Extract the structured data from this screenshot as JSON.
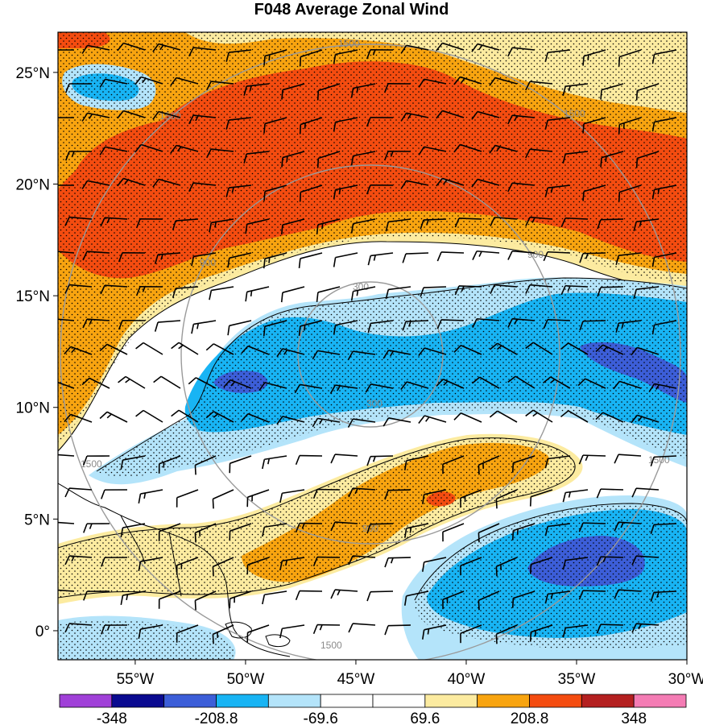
{
  "title": "F048 Average Zonal Wind",
  "map": {
    "lat_labels": [
      "25°N",
      "20°N",
      "15°N",
      "10°N",
      "5°N",
      "0°"
    ],
    "lat_values": [
      25,
      20,
      15,
      10,
      5,
      0
    ],
    "lon_labels": [
      "55°W",
      "50°W",
      "45°W",
      "40°W",
      "35°W",
      "30°W"
    ],
    "lon_values": [
      -55,
      -50,
      -45,
      -40,
      -35,
      -30
    ],
    "lon_range": [
      -58.5,
      -30
    ],
    "lat_range": [
      -1.3,
      26.8
    ],
    "range_ring_labels": [
      "300",
      "300",
      "900",
      "900",
      "900",
      "1500",
      "1500",
      "1500",
      "1500",
      "1500",
      "1500"
    ]
  },
  "colorbar": {
    "labels": [
      "-348",
      "-208.8",
      "-69.6",
      "69.6",
      "208.8",
      "348"
    ],
    "colors": [
      "#a040d8",
      "#0a0a90",
      "#3c5ed8",
      "#18b4f4",
      "#b4e4fa",
      "#ffffff",
      "#ffffff",
      "#fceba0",
      "#f8a410",
      "#f44c10",
      "#b42020",
      "#f47cb4"
    ]
  },
  "colors": {
    "red": "#f44c10",
    "orange": "#f8a410",
    "yellow": "#fceba0",
    "light_blue": "#b4e4fa",
    "blue": "#18b4f4",
    "dark_blue": "#3c5ed8",
    "ring": "#9a9a9a"
  }
}
